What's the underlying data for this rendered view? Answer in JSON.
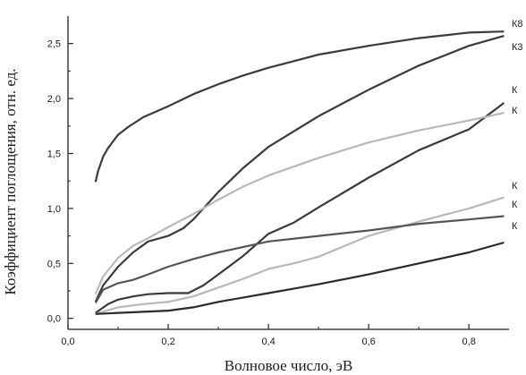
{
  "chart_data": {
    "type": "line",
    "title": "",
    "xlabel": "Волновое число, эВ",
    "ylabel": "Коэффициент поглощения, отн. ед.",
    "xlim": [
      0.0,
      0.88
    ],
    "ylim": [
      -0.1,
      2.75
    ],
    "xticks": [
      "0,0",
      "0,2",
      "0,4",
      "0,6",
      "0,8"
    ],
    "xtick_values": [
      0.0,
      0.2,
      0.4,
      0.6,
      0.8
    ],
    "yticks": [
      "0,0",
      "0,5",
      "1,0",
      "1,5",
      "2,0",
      "2,5"
    ],
    "ytick_values": [
      0.0,
      0.5,
      1.0,
      1.5,
      2.0,
      2.5
    ],
    "grid": false,
    "series": [
      {
        "name": "К8",
        "color": "#3a3a3a",
        "x": [
          0.055,
          0.06,
          0.07,
          0.08,
          0.1,
          0.12,
          0.15,
          0.2,
          0.25,
          0.3,
          0.35,
          0.4,
          0.45,
          0.5,
          0.6,
          0.7,
          0.8,
          0.87
        ],
        "y": [
          1.24,
          1.34,
          1.47,
          1.55,
          1.67,
          1.74,
          1.83,
          1.93,
          2.04,
          2.13,
          2.21,
          2.28,
          2.34,
          2.4,
          2.48,
          2.55,
          2.6,
          2.61
        ]
      },
      {
        "name": "К3",
        "color": "#3a3a3a",
        "x": [
          0.055,
          0.07,
          0.1,
          0.13,
          0.16,
          0.2,
          0.23,
          0.25,
          0.3,
          0.35,
          0.4,
          0.45,
          0.5,
          0.55,
          0.6,
          0.7,
          0.8,
          0.87
        ],
        "y": [
          0.15,
          0.3,
          0.47,
          0.6,
          0.7,
          0.75,
          0.82,
          0.9,
          1.15,
          1.37,
          1.56,
          1.7,
          1.84,
          1.96,
          2.08,
          2.3,
          2.48,
          2.57
        ]
      },
      {
        "name": "К",
        "color": "#3a3a3a",
        "x": [
          0.055,
          0.08,
          0.1,
          0.13,
          0.16,
          0.2,
          0.24,
          0.27,
          0.3,
          0.35,
          0.4,
          0.45,
          0.5,
          0.6,
          0.7,
          0.8,
          0.87
        ],
        "y": [
          0.05,
          0.13,
          0.17,
          0.2,
          0.22,
          0.23,
          0.23,
          0.3,
          0.4,
          0.57,
          0.77,
          0.87,
          1.01,
          1.28,
          1.53,
          1.72,
          1.96
        ]
      },
      {
        "name": "К",
        "color": "#b8b8b8",
        "x": [
          0.055,
          0.07,
          0.1,
          0.13,
          0.16,
          0.2,
          0.25,
          0.3,
          0.35,
          0.4,
          0.5,
          0.6,
          0.7,
          0.8,
          0.87
        ],
        "y": [
          0.22,
          0.38,
          0.55,
          0.66,
          0.73,
          0.83,
          0.95,
          1.08,
          1.2,
          1.3,
          1.46,
          1.6,
          1.71,
          1.8,
          1.87
        ]
      },
      {
        "name": "К",
        "color": "#b8b8b8",
        "x": [
          0.055,
          0.1,
          0.15,
          0.2,
          0.25,
          0.3,
          0.35,
          0.4,
          0.45,
          0.5,
          0.6,
          0.7,
          0.8,
          0.87
        ],
        "y": [
          0.04,
          0.1,
          0.13,
          0.15,
          0.2,
          0.28,
          0.36,
          0.45,
          0.5,
          0.56,
          0.75,
          0.88,
          1.0,
          1.1
        ]
      },
      {
        "name": "К",
        "color": "#555555",
        "x": [
          0.055,
          0.07,
          0.1,
          0.13,
          0.16,
          0.2,
          0.25,
          0.3,
          0.35,
          0.4,
          0.5,
          0.6,
          0.7,
          0.8,
          0.87
        ],
        "y": [
          0.14,
          0.26,
          0.32,
          0.35,
          0.4,
          0.47,
          0.54,
          0.6,
          0.65,
          0.7,
          0.75,
          0.8,
          0.86,
          0.9,
          0.93
        ]
      },
      {
        "name": "К",
        "color": "#2a2a2a",
        "x": [
          0.055,
          0.1,
          0.15,
          0.2,
          0.25,
          0.3,
          0.35,
          0.4,
          0.45,
          0.5,
          0.6,
          0.7,
          0.8,
          0.87
        ],
        "y": [
          0.04,
          0.05,
          0.06,
          0.07,
          0.1,
          0.15,
          0.19,
          0.23,
          0.27,
          0.31,
          0.4,
          0.5,
          0.6,
          0.69
        ]
      }
    ]
  }
}
